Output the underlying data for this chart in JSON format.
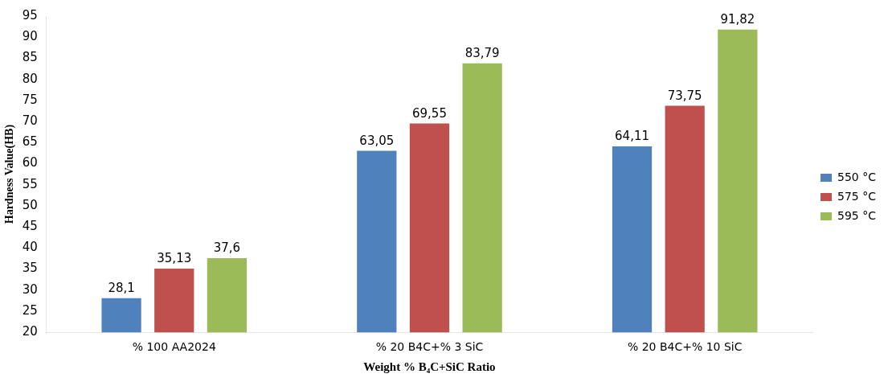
{
  "chart_data": {
    "type": "bar",
    "xlabel": "Weight % B₄C+SiC Ratio",
    "ylabel": "Hardness Value(HB)",
    "categories": [
      "% 100 AA2024",
      "% 20 B4C+% 3 SiC",
      "% 20 B4C+% 10 SiC"
    ],
    "series": [
      {
        "name": "550 °C",
        "color": "#4f81bd",
        "values": [
          28.1,
          63.05,
          64.11
        ],
        "value_labels": [
          "28,1",
          "63,05",
          "64,11"
        ]
      },
      {
        "name": "575 °C",
        "color": "#c0504d",
        "values": [
          35.13,
          69.55,
          73.75
        ],
        "value_labels": [
          "35,13",
          "69,55",
          "73,75"
        ]
      },
      {
        "name": "595 °C",
        "color": "#9bbb59",
        "values": [
          37.6,
          83.79,
          91.82
        ],
        "value_labels": [
          "37,6",
          "83,79",
          "91,82"
        ]
      }
    ],
    "ylim": [
      20,
      95
    ],
    "yticks": [
      20,
      25,
      30,
      35,
      40,
      45,
      50,
      55,
      60,
      65,
      70,
      75,
      80,
      85,
      90,
      95
    ],
    "grid": false,
    "legend": "right"
  }
}
